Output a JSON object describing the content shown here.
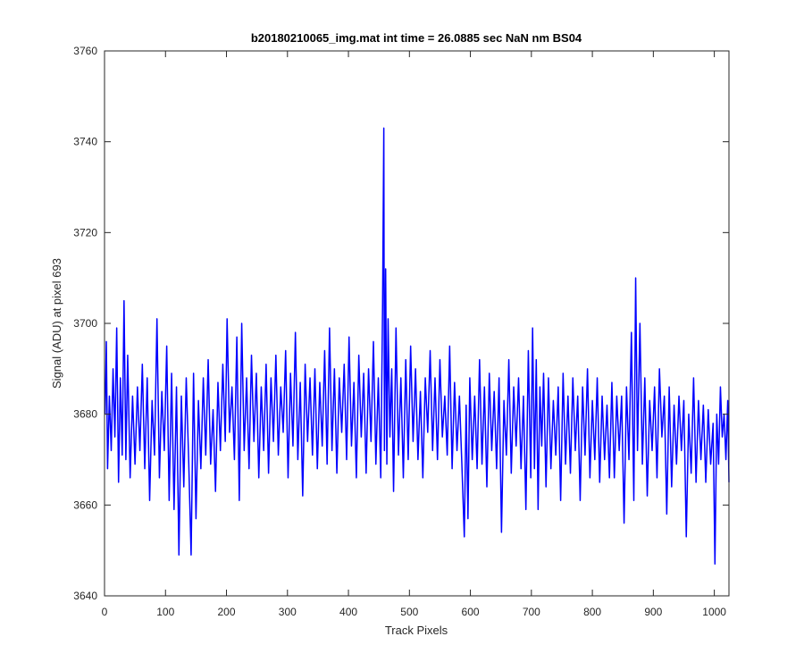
{
  "chart_data": {
    "type": "line",
    "title": "b20180210065_img.mat int time = 26.0885 sec  NaN nm BS04",
    "xlabel": "Track Pixels",
    "ylabel": "Signal (ADU) at pixel 693",
    "xlim": [
      0,
      1024
    ],
    "ylim": [
      3640,
      3760
    ],
    "xticks": [
      0,
      100,
      200,
      300,
      400,
      500,
      600,
      700,
      800,
      900,
      1000
    ],
    "yticks": [
      3640,
      3660,
      3680,
      3700,
      3720,
      3740,
      3760
    ],
    "grid": false,
    "line_color": "#0000ff",
    "series": [
      {
        "points": [
          [
            1,
            3680
          ],
          [
            3,
            3696
          ],
          [
            5,
            3668
          ],
          [
            8,
            3684
          ],
          [
            11,
            3672
          ],
          [
            14,
            3690
          ],
          [
            17,
            3675
          ],
          [
            20,
            3699
          ],
          [
            23,
            3665
          ],
          [
            26,
            3688
          ],
          [
            29,
            3671
          ],
          [
            32,
            3705
          ],
          [
            35,
            3670
          ],
          [
            38,
            3693
          ],
          [
            42,
            3666
          ],
          [
            46,
            3684
          ],
          [
            50,
            3669
          ],
          [
            54,
            3686
          ],
          [
            58,
            3672
          ],
          [
            62,
            3691
          ],
          [
            66,
            3668
          ],
          [
            70,
            3688
          ],
          [
            74,
            3661
          ],
          [
            78,
            3683
          ],
          [
            82,
            3671
          ],
          [
            86,
            3701
          ],
          [
            90,
            3666
          ],
          [
            94,
            3685
          ],
          [
            98,
            3672
          ],
          [
            102,
            3695
          ],
          [
            106,
            3661
          ],
          [
            110,
            3689
          ],
          [
            114,
            3659
          ],
          [
            118,
            3686
          ],
          [
            122,
            3649
          ],
          [
            126,
            3684
          ],
          [
            130,
            3664
          ],
          [
            134,
            3688
          ],
          [
            138,
            3670
          ],
          [
            142,
            3649
          ],
          [
            146,
            3689
          ],
          [
            150,
            3657
          ],
          [
            154,
            3683
          ],
          [
            158,
            3668
          ],
          [
            162,
            3688
          ],
          [
            166,
            3671
          ],
          [
            170,
            3692
          ],
          [
            174,
            3669
          ],
          [
            178,
            3681
          ],
          [
            182,
            3663
          ],
          [
            186,
            3687
          ],
          [
            190,
            3672
          ],
          [
            194,
            3691
          ],
          [
            198,
            3674
          ],
          [
            201,
            3701
          ],
          [
            205,
            3676
          ],
          [
            209,
            3686
          ],
          [
            213,
            3670
          ],
          [
            217,
            3697
          ],
          [
            221,
            3661
          ],
          [
            225,
            3700
          ],
          [
            229,
            3672
          ],
          [
            233,
            3688
          ],
          [
            237,
            3668
          ],
          [
            241,
            3693
          ],
          [
            245,
            3674
          ],
          [
            249,
            3689
          ],
          [
            253,
            3666
          ],
          [
            257,
            3686
          ],
          [
            261,
            3672
          ],
          [
            265,
            3691
          ],
          [
            269,
            3667
          ],
          [
            273,
            3688
          ],
          [
            277,
            3674
          ],
          [
            281,
            3693
          ],
          [
            285,
            3671
          ],
          [
            289,
            3686
          ],
          [
            293,
            3676
          ],
          [
            297,
            3694
          ],
          [
            301,
            3666
          ],
          [
            305,
            3689
          ],
          [
            309,
            3673
          ],
          [
            313,
            3698
          ],
          [
            317,
            3670
          ],
          [
            321,
            3687
          ],
          [
            325,
            3662
          ],
          [
            329,
            3691
          ],
          [
            333,
            3674
          ],
          [
            337,
            3688
          ],
          [
            341,
            3671
          ],
          [
            345,
            3690
          ],
          [
            349,
            3668
          ],
          [
            353,
            3687
          ],
          [
            357,
            3673
          ],
          [
            361,
            3694
          ],
          [
            365,
            3669
          ],
          [
            369,
            3699
          ],
          [
            373,
            3672
          ],
          [
            377,
            3690
          ],
          [
            381,
            3667
          ],
          [
            385,
            3688
          ],
          [
            389,
            3676
          ],
          [
            393,
            3691
          ],
          [
            397,
            3670
          ],
          [
            401,
            3697
          ],
          [
            405,
            3673
          ],
          [
            409,
            3687
          ],
          [
            413,
            3666
          ],
          [
            417,
            3693
          ],
          [
            421,
            3675
          ],
          [
            425,
            3689
          ],
          [
            429,
            3667
          ],
          [
            433,
            3690
          ],
          [
            437,
            3674
          ],
          [
            441,
            3696
          ],
          [
            445,
            3669
          ],
          [
            449,
            3688
          ],
          [
            453,
            3666
          ],
          [
            456,
            3704
          ],
          [
            458,
            3743
          ],
          [
            459,
            3672
          ],
          [
            461,
            3712
          ],
          [
            463,
            3669
          ],
          [
            465,
            3701
          ],
          [
            468,
            3675
          ],
          [
            471,
            3690
          ],
          [
            474,
            3663
          ],
          [
            478,
            3699
          ],
          [
            482,
            3671
          ],
          [
            486,
            3688
          ],
          [
            490,
            3666
          ],
          [
            494,
            3692
          ],
          [
            498,
            3670
          ],
          [
            502,
            3695
          ],
          [
            506,
            3674
          ],
          [
            510,
            3690
          ],
          [
            514,
            3670
          ],
          [
            518,
            3685
          ],
          [
            522,
            3666
          ],
          [
            526,
            3688
          ],
          [
            530,
            3676
          ],
          [
            534,
            3694
          ],
          [
            538,
            3672
          ],
          [
            542,
            3688
          ],
          [
            546,
            3670
          ],
          [
            550,
            3692
          ],
          [
            554,
            3675
          ],
          [
            558,
            3684
          ],
          [
            562,
            3671
          ],
          [
            566,
            3695
          ],
          [
            570,
            3668
          ],
          [
            574,
            3687
          ],
          [
            578,
            3672
          ],
          [
            582,
            3684
          ],
          [
            586,
            3669
          ],
          [
            590,
            3653
          ],
          [
            593,
            3682
          ],
          [
            596,
            3657
          ],
          [
            599,
            3688
          ],
          [
            603,
            3670
          ],
          [
            607,
            3684
          ],
          [
            611,
            3668
          ],
          [
            615,
            3692
          ],
          [
            619,
            3669
          ],
          [
            623,
            3686
          ],
          [
            627,
            3664
          ],
          [
            631,
            3689
          ],
          [
            635,
            3672
          ],
          [
            639,
            3685
          ],
          [
            643,
            3668
          ],
          [
            647,
            3688
          ],
          [
            651,
            3654
          ],
          [
            655,
            3683
          ],
          [
            659,
            3671
          ],
          [
            663,
            3692
          ],
          [
            667,
            3667
          ],
          [
            671,
            3686
          ],
          [
            675,
            3673
          ],
          [
            679,
            3688
          ],
          [
            683,
            3668
          ],
          [
            687,
            3684
          ],
          [
            691,
            3659
          ],
          [
            695,
            3694
          ],
          [
            699,
            3666
          ],
          [
            702,
            3699
          ],
          [
            705,
            3668
          ],
          [
            708,
            3692
          ],
          [
            711,
            3659
          ],
          [
            714,
            3686
          ],
          [
            717,
            3673
          ],
          [
            720,
            3689
          ],
          [
            724,
            3664
          ],
          [
            728,
            3688
          ],
          [
            732,
            3668
          ],
          [
            736,
            3683
          ],
          [
            740,
            3671
          ],
          [
            744,
            3686
          ],
          [
            748,
            3661
          ],
          [
            752,
            3689
          ],
          [
            756,
            3669
          ],
          [
            760,
            3684
          ],
          [
            764,
            3667
          ],
          [
            768,
            3688
          ],
          [
            772,
            3672
          ],
          [
            776,
            3684
          ],
          [
            780,
            3661
          ],
          [
            784,
            3686
          ],
          [
            788,
            3671
          ],
          [
            792,
            3690
          ],
          [
            796,
            3666
          ],
          [
            800,
            3683
          ],
          [
            804,
            3670
          ],
          [
            808,
            3688
          ],
          [
            812,
            3665
          ],
          [
            816,
            3684
          ],
          [
            820,
            3670
          ],
          [
            824,
            3682
          ],
          [
            828,
            3666
          ],
          [
            832,
            3687
          ],
          [
            836,
            3666
          ],
          [
            840,
            3684
          ],
          [
            844,
            3672
          ],
          [
            848,
            3684
          ],
          [
            852,
            3656
          ],
          [
            856,
            3686
          ],
          [
            860,
            3670
          ],
          [
            864,
            3698
          ],
          [
            868,
            3661
          ],
          [
            871,
            3710
          ],
          [
            874,
            3672
          ],
          [
            878,
            3700
          ],
          [
            882,
            3669
          ],
          [
            886,
            3688
          ],
          [
            890,
            3662
          ],
          [
            894,
            3683
          ],
          [
            898,
            3672
          ],
          [
            902,
            3686
          ],
          [
            906,
            3666
          ],
          [
            910,
            3690
          ],
          [
            914,
            3675
          ],
          [
            918,
            3684
          ],
          [
            922,
            3658
          ],
          [
            926,
            3686
          ],
          [
            930,
            3664
          ],
          [
            934,
            3682
          ],
          [
            938,
            3669
          ],
          [
            942,
            3684
          ],
          [
            946,
            3672
          ],
          [
            950,
            3683
          ],
          [
            954,
            3653
          ],
          [
            958,
            3680
          ],
          [
            962,
            3667
          ],
          [
            966,
            3688
          ],
          [
            970,
            3665
          ],
          [
            974,
            3683
          ],
          [
            978,
            3670
          ],
          [
            982,
            3682
          ],
          [
            986,
            3665
          ],
          [
            990,
            3681
          ],
          [
            994,
            3669
          ],
          [
            998,
            3678
          ],
          [
            1001,
            3647
          ],
          [
            1004,
            3680
          ],
          [
            1007,
            3669
          ],
          [
            1010,
            3686
          ],
          [
            1013,
            3675
          ],
          [
            1016,
            3680
          ],
          [
            1019,
            3670
          ],
          [
            1022,
            3683
          ],
          [
            1024,
            3665
          ]
        ]
      }
    ]
  }
}
